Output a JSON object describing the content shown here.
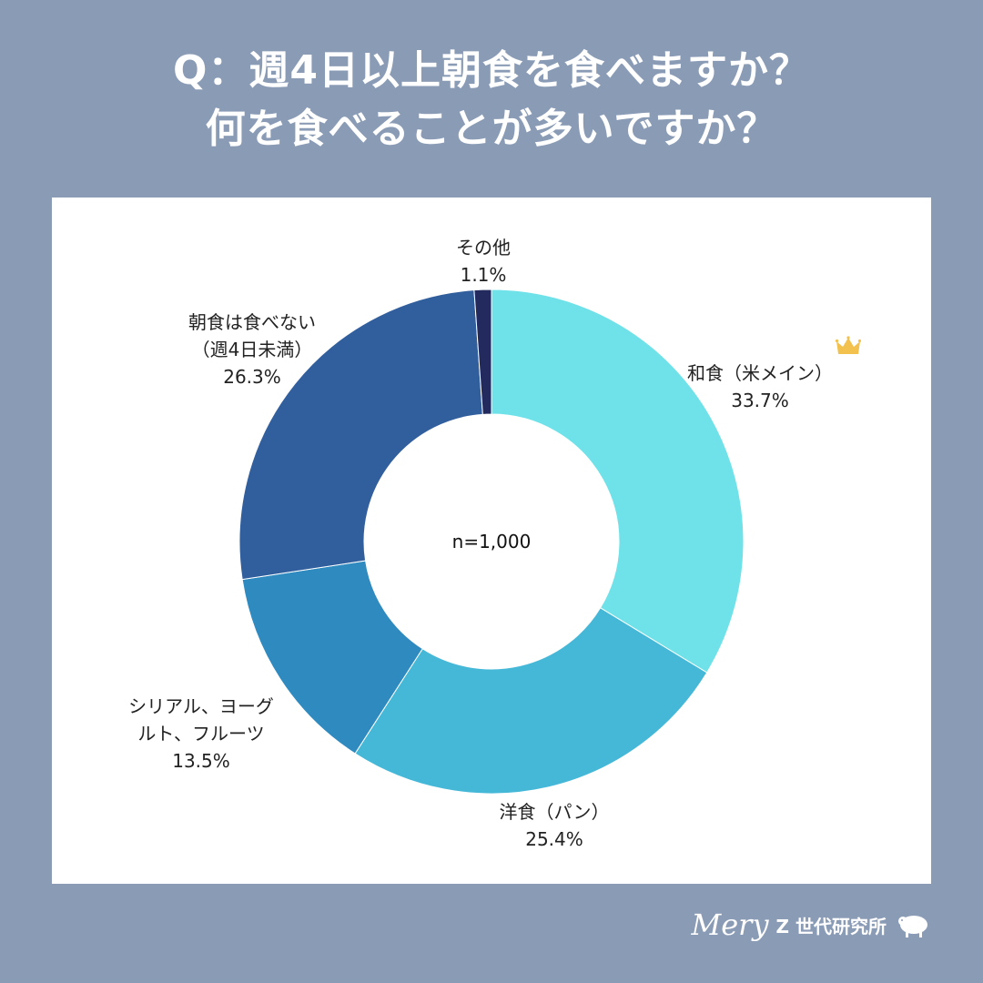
{
  "title": {
    "line1": "Q：週4日以上朝食を食べますか？",
    "line2": "何を食べることが多いですか？"
  },
  "chart_data": {
    "type": "pie",
    "donut": true,
    "center_label": "n=1,000",
    "slices": [
      {
        "label": "和食（米メイン）",
        "label_lines": [
          "和食（米メイン）"
        ],
        "value": 33.7,
        "value_label": "33.7%",
        "color": "#6ee2e8"
      },
      {
        "label": "洋食（パン）",
        "label_lines": [
          "洋食（パン）"
        ],
        "value": 25.4,
        "value_label": "25.4%",
        "color": "#45b8d8"
      },
      {
        "label": "シリアル、ヨーグルト、フルーツ",
        "label_lines": [
          "シリアル、ヨーグ",
          "ルト、フルーツ"
        ],
        "value": 13.5,
        "value_label": "13.5%",
        "color": "#2f8ac0"
      },
      {
        "label": "朝食は食べない（週4日未満）",
        "label_lines": [
          "朝食は食べない",
          "（週4日未満）"
        ],
        "value": 26.3,
        "value_label": "26.3%",
        "color": "#315e9c"
      },
      {
        "label": "その他",
        "label_lines": [
          "その他"
        ],
        "value": 1.1,
        "value_label": "1.1%",
        "color": "#232b5e"
      }
    ],
    "highlight": {
      "slice": "和食（米メイン）",
      "icon": "crown-icon"
    }
  },
  "brand": {
    "logo": "Mery",
    "text": "Z 世代研究所",
    "icon": "sheep-icon"
  }
}
